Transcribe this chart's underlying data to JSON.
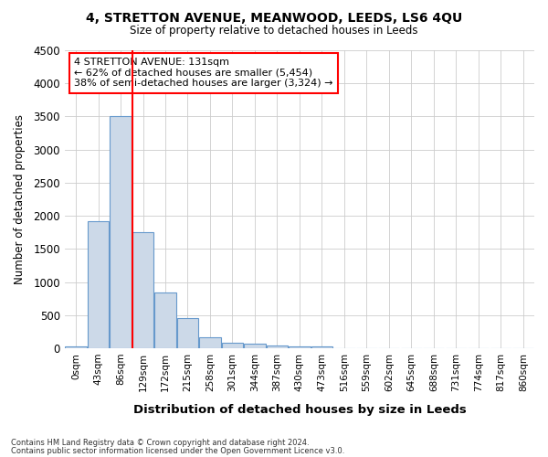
{
  "title1": "4, STRETTON AVENUE, MEANWOOD, LEEDS, LS6 4QU",
  "title2": "Size of property relative to detached houses in Leeds",
  "xlabel": "Distribution of detached houses by size in Leeds",
  "ylabel": "Number of detached properties",
  "bar_labels": [
    "0sqm",
    "43sqm",
    "86sqm",
    "129sqm",
    "172sqm",
    "215sqm",
    "258sqm",
    "301sqm",
    "344sqm",
    "387sqm",
    "430sqm",
    "473sqm",
    "516sqm",
    "559sqm",
    "602sqm",
    "645sqm",
    "688sqm",
    "731sqm",
    "774sqm",
    "817sqm",
    "860sqm"
  ],
  "bar_heights": [
    30,
    1920,
    3500,
    1760,
    850,
    460,
    170,
    90,
    75,
    50,
    35,
    25,
    0,
    0,
    0,
    0,
    0,
    0,
    0,
    0,
    0
  ],
  "bar_color": "#ccd9e8",
  "bar_edge_color": "#6699cc",
  "ylim": [
    0,
    4500
  ],
  "yticks": [
    0,
    500,
    1000,
    1500,
    2000,
    2500,
    3000,
    3500,
    4000,
    4500
  ],
  "red_line_bar_index": 3,
  "annotation_title": "4 STRETTON AVENUE: 131sqm",
  "annotation_line1": "← 62% of detached houses are smaller (5,454)",
  "annotation_line2": "38% of semi-detached houses are larger (3,324) →",
  "footer_line1": "Contains HM Land Registry data © Crown copyright and database right 2024.",
  "footer_line2": "Contains public sector information licensed under the Open Government Licence v3.0.",
  "bg_color": "#ffffff",
  "plot_bg_color": "#ffffff",
  "grid_color": "#cccccc"
}
